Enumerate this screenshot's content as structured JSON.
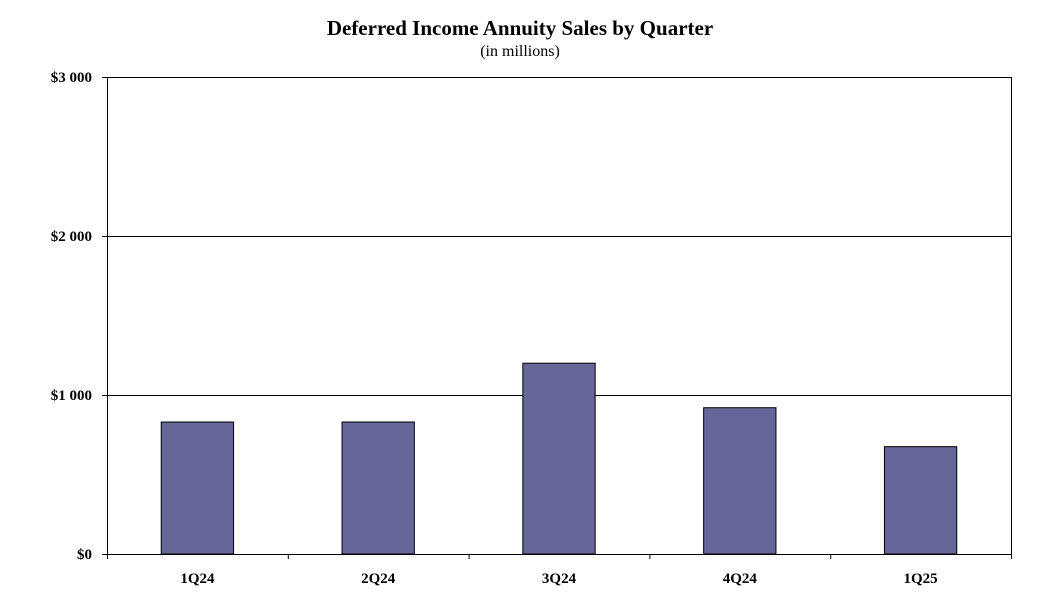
{
  "chart_data": {
    "type": "bar",
    "title": "Deferred Income Annuity Sales by Quarter",
    "subtitle": "(in millions)",
    "categories": [
      "1Q24",
      "2Q24",
      "3Q24",
      "4Q24",
      "1Q25"
    ],
    "values": [
      830,
      830,
      1200,
      920,
      675
    ],
    "ylim": [
      0,
      3000
    ],
    "yticks": [
      0,
      1000,
      2000,
      3000
    ],
    "ytick_labels": [
      "$0",
      "$1 000",
      "$2 000",
      "$3 000"
    ],
    "xlabel": "",
    "ylabel": "",
    "grid": true,
    "bar_color": "#666699"
  }
}
